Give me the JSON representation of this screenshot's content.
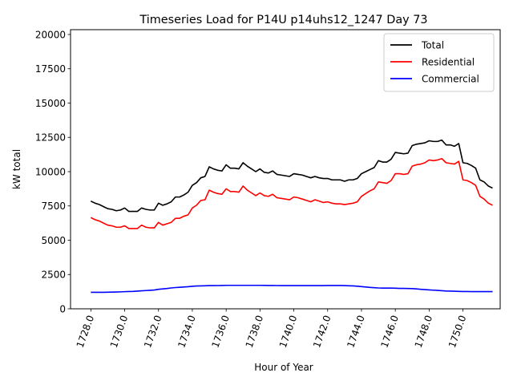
{
  "chart_data": {
    "type": "line",
    "title": "Timeseries Load for P14U p14uhs12_1247  Day 73",
    "xlabel": "Hour of Year",
    "ylabel": "kW total",
    "xlim": [
      1726.8,
      1752.2
    ],
    "ylim": [
      0,
      20350
    ],
    "xticks": [
      1728,
      1730,
      1732,
      1734,
      1736,
      1738,
      1740,
      1742,
      1744,
      1746,
      1748,
      1750
    ],
    "xtick_labels": [
      "1728.0",
      "1730.0",
      "1732.0",
      "1734.0",
      "1736.0",
      "1738.0",
      "1740.0",
      "1742.0",
      "1744.0",
      "1746.0",
      "1748.0",
      "1750.0"
    ],
    "yticks": [
      0,
      2500,
      5000,
      7500,
      10000,
      12500,
      15000,
      17500,
      20000
    ],
    "ytick_labels": [
      "0",
      "2500",
      "5000",
      "7500",
      "10000",
      "12500",
      "15000",
      "17500",
      "20000"
    ],
    "legend_position": "top-right",
    "x": [
      1728.0,
      1728.25,
      1728.5,
      1728.75,
      1729.0,
      1729.25,
      1729.5,
      1729.75,
      1730.0,
      1730.25,
      1730.5,
      1730.75,
      1731.0,
      1731.25,
      1731.5,
      1731.75,
      1732.0,
      1732.25,
      1732.5,
      1732.75,
      1733.0,
      1733.25,
      1733.5,
      1733.75,
      1734.0,
      1734.25,
      1734.5,
      1734.75,
      1735.0,
      1735.25,
      1735.5,
      1735.75,
      1736.0,
      1736.25,
      1736.5,
      1736.75,
      1737.0,
      1737.25,
      1737.5,
      1737.75,
      1738.0,
      1738.25,
      1738.5,
      1738.75,
      1739.0,
      1739.25,
      1739.5,
      1739.75,
      1740.0,
      1740.25,
      1740.5,
      1740.75,
      1741.0,
      1741.25,
      1741.5,
      1741.75,
      1742.0,
      1742.25,
      1742.5,
      1742.75,
      1743.0,
      1743.25,
      1743.5,
      1743.75,
      1744.0,
      1744.25,
      1744.5,
      1744.75,
      1745.0,
      1745.25,
      1745.5,
      1745.75,
      1746.0,
      1746.25,
      1746.5,
      1746.75,
      1747.0,
      1747.25,
      1747.5,
      1747.75,
      1748.0,
      1748.25,
      1748.5,
      1748.75,
      1749.0,
      1749.25,
      1749.5,
      1749.75,
      1750.0,
      1750.25,
      1750.5,
      1750.75,
      1751.0,
      1751.25,
      1751.5,
      1751.75
    ],
    "series": [
      {
        "name": "Total",
        "color": "#000000",
        "values": [
          7850,
          7700,
          7600,
          7450,
          7300,
          7250,
          7150,
          7200,
          7350,
          7100,
          7100,
          7100,
          7350,
          7250,
          7200,
          7200,
          7700,
          7550,
          7650,
          7800,
          8150,
          8150,
          8300,
          8500,
          9000,
          9200,
          9550,
          9650,
          10350,
          10200,
          10100,
          10050,
          10500,
          10250,
          10250,
          10200,
          10650,
          10400,
          10200,
          10000,
          10200,
          9950,
          9900,
          10050,
          9800,
          9750,
          9700,
          9650,
          9850,
          9800,
          9750,
          9650,
          9550,
          9650,
          9550,
          9500,
          9500,
          9400,
          9400,
          9400,
          9300,
          9400,
          9400,
          9500,
          9850,
          10000,
          10150,
          10300,
          10800,
          10700,
          10700,
          10900,
          11400,
          11350,
          11300,
          11350,
          11900,
          12000,
          12050,
          12100,
          12250,
          12200,
          12200,
          12300,
          11950,
          11950,
          11850,
          12050,
          10650,
          10600,
          10450,
          10250,
          9400,
          9250,
          8950,
          8800
        ]
      },
      {
        "name": "Residential",
        "color": "#ff0000",
        "values": [
          6650,
          6500,
          6400,
          6250,
          6100,
          6050,
          5950,
          5950,
          6050,
          5850,
          5850,
          5850,
          6100,
          5950,
          5900,
          5900,
          6300,
          6100,
          6200,
          6300,
          6600,
          6600,
          6750,
          6850,
          7350,
          7550,
          7900,
          7950,
          8650,
          8500,
          8400,
          8350,
          8750,
          8550,
          8550,
          8500,
          8950,
          8650,
          8450,
          8250,
          8450,
          8250,
          8200,
          8350,
          8100,
          8050,
          8000,
          7950,
          8150,
          8100,
          8000,
          7900,
          7800,
          7950,
          7850,
          7750,
          7800,
          7700,
          7650,
          7650,
          7600,
          7650,
          7700,
          7800,
          8200,
          8400,
          8600,
          8750,
          9250,
          9200,
          9150,
          9350,
          9850,
          9850,
          9800,
          9850,
          10400,
          10500,
          10550,
          10650,
          10850,
          10800,
          10850,
          10950,
          10650,
          10600,
          10550,
          10750,
          9400,
          9350,
          9200,
          9000,
          8200,
          8000,
          7700,
          7550
        ]
      },
      {
        "name": "Commercial",
        "color": "#0000ff",
        "values": [
          1200,
          1200,
          1200,
          1205,
          1210,
          1215,
          1225,
          1235,
          1250,
          1260,
          1270,
          1290,
          1310,
          1330,
          1350,
          1370,
          1420,
          1450,
          1480,
          1520,
          1550,
          1570,
          1590,
          1610,
          1640,
          1660,
          1670,
          1680,
          1690,
          1690,
          1695,
          1700,
          1710,
          1710,
          1710,
          1710,
          1710,
          1710,
          1710,
          1710,
          1710,
          1705,
          1700,
          1700,
          1695,
          1690,
          1690,
          1690,
          1690,
          1690,
          1690,
          1690,
          1690,
          1690,
          1690,
          1690,
          1700,
          1700,
          1700,
          1700,
          1690,
          1680,
          1670,
          1650,
          1620,
          1590,
          1560,
          1540,
          1520,
          1510,
          1510,
          1510,
          1500,
          1490,
          1490,
          1480,
          1470,
          1450,
          1420,
          1400,
          1380,
          1360,
          1340,
          1320,
          1300,
          1290,
          1280,
          1270,
          1260,
          1260,
          1255,
          1255,
          1255,
          1255,
          1255,
          1255
        ]
      }
    ]
  }
}
